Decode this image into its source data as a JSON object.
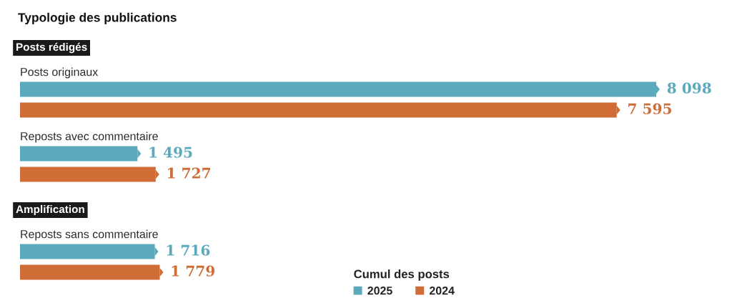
{
  "chart_data": [
    {
      "type": "bar",
      "orientation": "horizontal",
      "title": "Typologie des publications",
      "subtitle": "Posts rédigés",
      "categories": [
        "Posts originaux",
        "Reposts avec commentaire"
      ],
      "series": [
        {
          "color": "#5ba9bd",
          "values": [
            8098,
            1495
          ],
          "value_labels": [
            "8 098",
            "1 495"
          ]
        },
        {
          "color": "#d06d36",
          "values": [
            7595,
            1727
          ],
          "value_labels": [
            "7 595",
            "1 727"
          ]
        }
      ]
    },
    {
      "type": "bar",
      "orientation": "horizontal",
      "subtitle": "Amplification",
      "categories": [
        "Reposts sans commentaire"
      ],
      "series": [
        {
          "name": "2025",
          "color": "#5ba9bd",
          "values": [
            1716
          ],
          "value_labels": [
            "1 716"
          ]
        },
        {
          "name": "2024",
          "color": "#d06d36",
          "values": [
            1779
          ],
          "value_labels": [
            "1 779"
          ]
        }
      ],
      "legend_title": "Cumul des posts",
      "legend": "bottom"
    }
  ]
}
